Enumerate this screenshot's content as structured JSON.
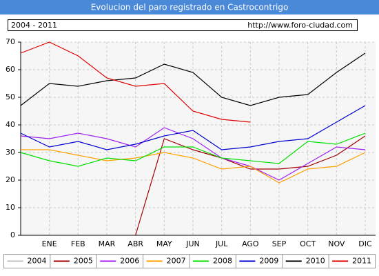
{
  "chart_data": {
    "type": "line",
    "title": "Evolucion del paro registrado en Castrocontrigo",
    "period": "2004 - 2011",
    "source": "http://www.foro-ciudad.com",
    "categories": [
      null,
      "ENE",
      "FEB",
      "MAR",
      "ABR",
      "MAY",
      "JUN",
      "JUL",
      "AGO",
      "SEP",
      "OCT",
      "NOV",
      "DIC"
    ],
    "ylim": [
      0,
      70
    ],
    "yticks": [
      0,
      10,
      20,
      30,
      40,
      50,
      60,
      70
    ],
    "grid": true,
    "series": [
      {
        "name": "2004",
        "color": "#c0c0c0",
        "values": [
          null,
          null,
          null,
          null,
          null,
          null,
          null,
          null,
          null,
          null,
          null,
          null,
          null
        ]
      },
      {
        "name": "2005",
        "color": "#a00000",
        "values": [
          null,
          null,
          null,
          null,
          0,
          35,
          31,
          28,
          24,
          24,
          25,
          29,
          36
        ]
      },
      {
        "name": "2006",
        "color": "#a020f0",
        "values": [
          36,
          35,
          37,
          35,
          32,
          39,
          35,
          28,
          25,
          20,
          26,
          32,
          31
        ]
      },
      {
        "name": "2007",
        "color": "#ffa000",
        "values": [
          31,
          31,
          29,
          27,
          28,
          30,
          28,
          24,
          25,
          19,
          24,
          25,
          30
        ]
      },
      {
        "name": "2008",
        "color": "#00e000",
        "values": [
          30,
          27,
          25,
          28,
          27,
          32,
          32,
          28,
          27,
          26,
          34,
          33,
          37
        ]
      },
      {
        "name": "2009",
        "color": "#0000d0",
        "values": [
          37,
          32,
          34,
          31,
          33,
          36,
          38,
          31,
          32,
          34,
          35,
          41,
          47
        ]
      },
      {
        "name": "2010",
        "color": "#000000",
        "values": [
          47,
          55,
          54,
          56,
          57,
          62,
          59,
          50,
          47,
          50,
          51,
          59,
          66
        ]
      },
      {
        "name": "2011",
        "color": "#e00000",
        "values": [
          66,
          70,
          65,
          57,
          54,
          55,
          45,
          42,
          41,
          null,
          null,
          null,
          null
        ]
      }
    ]
  }
}
